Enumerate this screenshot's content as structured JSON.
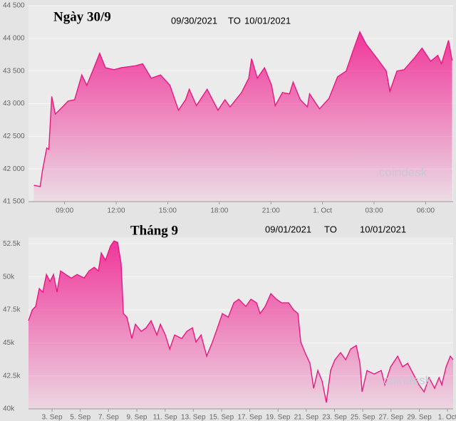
{
  "chart_data": [
    {
      "type": "area",
      "title": "Ngày 30/9",
      "date_from": "09/30/2021",
      "date_sep": "TO",
      "date_to": "10/01/2021",
      "watermark": "coindesk",
      "color": "#e8197f",
      "grid": true,
      "x": [
        7.21,
        7.58,
        7.71,
        7.96,
        8.08,
        8.25,
        8.46,
        8.875,
        9.21,
        9.58,
        10.0,
        10.29,
        10.63,
        11.04,
        11.375,
        11.875,
        12.29,
        13.125,
        13.54,
        14.04,
        14.58,
        15.125,
        15.625,
        16.04,
        16.25,
        16.67,
        17.29,
        17.92,
        18.33,
        18.625,
        19.29,
        19.71,
        19.875,
        20.21,
        20.625,
        21.04,
        21.25,
        21.67,
        22.08,
        22.29,
        22.71,
        23.125,
        23.25,
        23.83,
        24.375,
        24.875,
        25.375,
        25.79,
        26.17,
        26.54,
        27.125,
        27.71,
        27.92,
        28.33,
        28.75,
        29.375,
        29.79,
        30.29,
        30.71,
        30.92,
        31.33,
        31.54
      ],
      "values": [
        41750,
        41730,
        41970,
        42320,
        42300,
        43110,
        42840,
        42950,
        43040,
        43060,
        43440,
        43280,
        43500,
        43770,
        43550,
        43520,
        43550,
        43580,
        43610,
        43390,
        43440,
        43280,
        42900,
        43060,
        43220,
        42970,
        43220,
        42900,
        43060,
        42950,
        43170,
        43390,
        43690,
        43390,
        43550,
        43280,
        42970,
        43170,
        43150,
        43330,
        43060,
        42950,
        43150,
        42920,
        43080,
        43410,
        43500,
        43820,
        44100,
        43910,
        43710,
        43500,
        43190,
        43500,
        43520,
        43710,
        43850,
        43650,
        43740,
        43610,
        43970,
        43660
      ],
      "xlim": [
        6.9,
        31.6
      ],
      "ylim": [
        41500,
        44500
      ],
      "xticks": [
        {
          "value": 9,
          "label": "09:00"
        },
        {
          "value": 12,
          "label": "12:00"
        },
        {
          "value": 15,
          "label": "15:00"
        },
        {
          "value": 18,
          "label": "18:00"
        },
        {
          "value": 21,
          "label": "21:00"
        },
        {
          "value": 24,
          "label": "1. Oct"
        },
        {
          "value": 27,
          "label": "03:00"
        },
        {
          "value": 30,
          "label": "06:00"
        }
      ],
      "yticks": [
        {
          "value": 41500,
          "label": "41 500"
        },
        {
          "value": 42000,
          "label": "42 000"
        },
        {
          "value": 42500,
          "label": "42 500"
        },
        {
          "value": 43000,
          "label": "43 000"
        },
        {
          "value": 43500,
          "label": "43 500"
        },
        {
          "value": 44000,
          "label": "44 000"
        },
        {
          "value": 44500,
          "label": "44 500"
        }
      ]
    },
    {
      "type": "area",
      "title": "Tháng 9",
      "date_from": "09/01/2021",
      "date_sep": "TO",
      "date_to": "10/01/2021",
      "watermark": "coindesk",
      "color": "#e8197f",
      "grid": true,
      "x": [
        1.33,
        1.59,
        1.84,
        2.09,
        2.34,
        2.6,
        2.85,
        3.1,
        3.35,
        3.6,
        3.96,
        4.36,
        4.77,
        5.27,
        5.62,
        5.98,
        6.28,
        6.48,
        6.78,
        7.14,
        7.39,
        7.64,
        7.89,
        8.05,
        8.3,
        8.65,
        8.9,
        9.31,
        9.66,
        10.01,
        10.42,
        10.67,
        11.02,
        11.33,
        11.68,
        12.18,
        12.54,
        12.94,
        13.19,
        13.55,
        13.95,
        14.35,
        14.71,
        15.06,
        15.47,
        15.87,
        16.22,
        16.72,
        17.08,
        17.48,
        17.73,
        18.09,
        18.49,
        18.89,
        19.25,
        19.75,
        20.11,
        20.41,
        20.61,
        20.91,
        21.26,
        21.52,
        21.82,
        22.12,
        22.42,
        22.72,
        23.03,
        23.43,
        23.79,
        24.14,
        24.54,
        24.8,
        24.95,
        25.3,
        25.8,
        26.31,
        26.56,
        26.97,
        27.47,
        27.82,
        28.18,
        28.58,
        28.98,
        29.34,
        29.69,
        30.09,
        30.4,
        30.6,
        30.9,
        31.2,
        31.4
      ],
      "values": [
        46680,
        47490,
        47760,
        49110,
        48840,
        50180,
        49640,
        50180,
        48840,
        50450,
        50180,
        49910,
        50180,
        49910,
        50450,
        50720,
        50450,
        51800,
        51260,
        52340,
        52720,
        52610,
        50990,
        47220,
        46950,
        45330,
        46410,
        45870,
        46140,
        46680,
        45600,
        46410,
        45600,
        44530,
        45600,
        45330,
        45870,
        46140,
        45060,
        45600,
        43990,
        45060,
        46140,
        47220,
        46950,
        48030,
        48300,
        47760,
        48300,
        48030,
        47220,
        47760,
        48730,
        48300,
        48030,
        48030,
        47490,
        47220,
        45060,
        44260,
        43450,
        41560,
        42910,
        42100,
        40480,
        42910,
        43720,
        44260,
        43720,
        44530,
        44800,
        43450,
        41290,
        42910,
        42640,
        42910,
        41830,
        43180,
        43990,
        43180,
        43450,
        42640,
        41830,
        41290,
        42370,
        41560,
        42370,
        41830,
        43180,
        43990,
        43720
      ],
      "xlim": [
        1.33,
        31.4
      ],
      "ylim": [
        40000,
        53000
      ],
      "xticks": [
        {
          "value": 3,
          "label": "3. Sep"
        },
        {
          "value": 5,
          "label": "5. Sep"
        },
        {
          "value": 7,
          "label": "7. Sep"
        },
        {
          "value": 9,
          "label": "9. Sep"
        },
        {
          "value": 11,
          "label": "11. Sep"
        },
        {
          "value": 13,
          "label": "13. Sep"
        },
        {
          "value": 15,
          "label": "15. Sep"
        },
        {
          "value": 17,
          "label": "17. Sep"
        },
        {
          "value": 19,
          "label": "19. Sep"
        },
        {
          "value": 21,
          "label": "21. Sep"
        },
        {
          "value": 23,
          "label": "23. Sep"
        },
        {
          "value": 25,
          "label": "25. Sep"
        },
        {
          "value": 27,
          "label": "27. Sep"
        },
        {
          "value": 29,
          "label": "29. Sep"
        },
        {
          "value": 31,
          "label": "1. Oct"
        }
      ],
      "yticks": [
        {
          "value": 40000,
          "label": "40k"
        },
        {
          "value": 42500,
          "label": "42.5k"
        },
        {
          "value": 45000,
          "label": "45k"
        },
        {
          "value": 47500,
          "label": "47.5k"
        },
        {
          "value": 50000,
          "label": "50k"
        },
        {
          "value": 52500,
          "label": "52.5k"
        }
      ]
    }
  ]
}
